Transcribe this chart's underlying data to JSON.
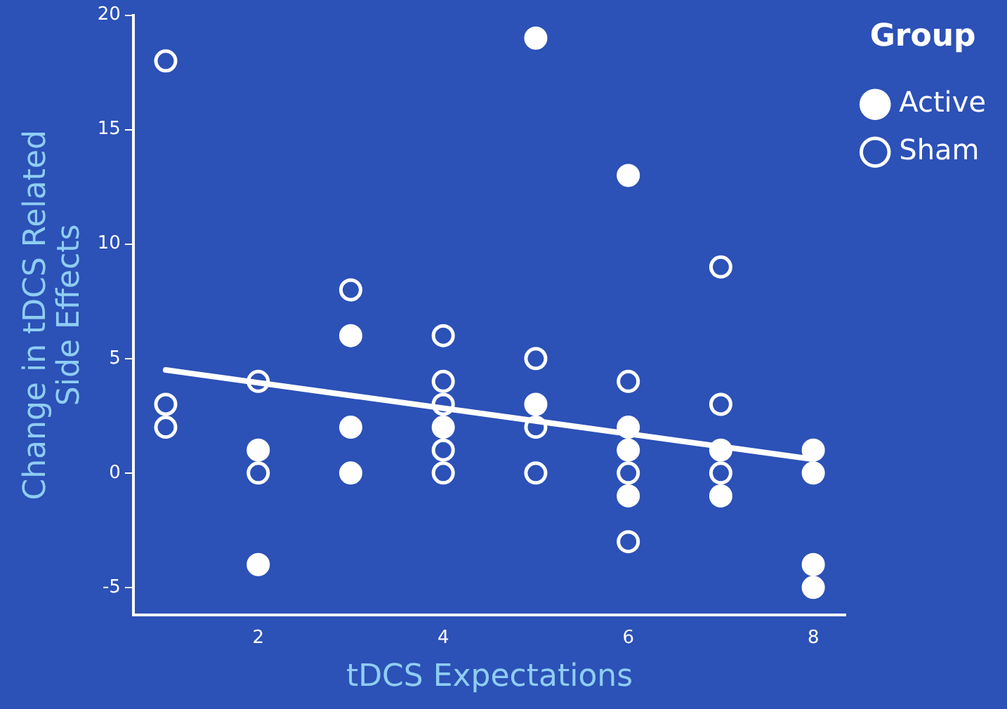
{
  "chart_data": {
    "type": "scatter",
    "xlabel": "tDCS Expectations",
    "ylabel": "Change in tDCS Related\nSide Effects",
    "legend_title": "Group",
    "legend": "top right",
    "grid": false,
    "xlim": [
      0.65,
      8.35
    ],
    "xticks": [
      2,
      4,
      6,
      8
    ],
    "ylim": [
      -6.2,
      20
    ],
    "yticks": [
      -5,
      0,
      5,
      10,
      15,
      20
    ],
    "series": [
      {
        "name": "Active",
        "color": "#ffffff",
        "marker": "circle",
        "x": [
          2,
          2,
          3,
          3,
          3,
          4,
          5,
          5,
          6,
          6,
          6,
          6,
          7,
          7,
          8,
          8,
          8,
          8
        ],
        "values": [
          1,
          -4,
          6,
          2,
          0,
          2,
          19,
          3,
          13,
          2,
          1,
          -1,
          1,
          -1,
          1,
          0,
          -4,
          -5
        ]
      },
      {
        "name": "Sham",
        "color": "#ffffff",
        "marker": "circle",
        "x": [
          1,
          1,
          1,
          2,
          2,
          3,
          4,
          4,
          4,
          4,
          4,
          5,
          5,
          5,
          6,
          6,
          6,
          7,
          7,
          7
        ],
        "values": [
          18,
          3,
          2,
          4,
          0,
          8,
          6,
          4,
          3,
          1,
          0,
          5,
          2,
          0,
          4,
          0,
          -3,
          9,
          3,
          0
        ]
      },
      {
        "type": "line",
        "color": "#ffffff",
        "x": [
          1,
          8
        ],
        "values": [
          4.5,
          0.6
        ]
      }
    ]
  }
}
